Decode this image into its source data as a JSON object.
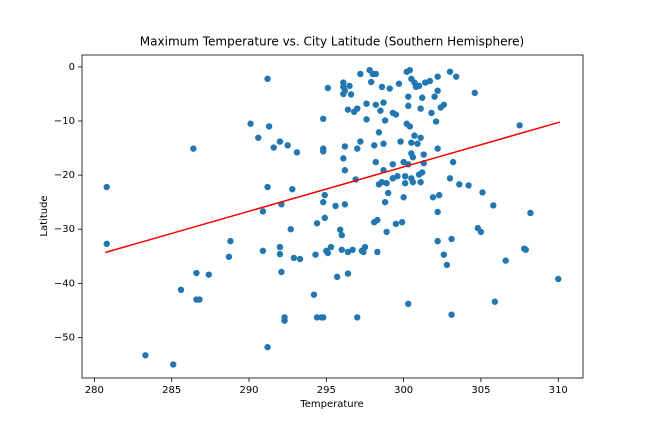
{
  "chart_data": {
    "type": "scatter",
    "title": "Maximum Temperature vs. City Latitude (Southern Hemisphere)",
    "xlabel": "Temperature",
    "ylabel": "Latitude",
    "xlim": [
      279.2,
      311.6
    ],
    "ylim": [
      -57.5,
      2.2
    ],
    "xticks": [
      280,
      285,
      290,
      295,
      300,
      305,
      310
    ],
    "yticks": [
      0,
      {
        "value": -10,
        "label": "−10"
      },
      {
        "value": -20,
        "label": "−20"
      },
      {
        "value": -30,
        "label": "−30"
      },
      {
        "value": -40,
        "label": "−40"
      },
      {
        "value": -50,
        "label": "−50"
      }
    ],
    "color": "#1f77b4",
    "x": [
      280.8,
      280.8,
      283.3,
      285.1,
      285.6,
      286.4,
      286.6,
      286.6,
      286.8,
      287.4,
      288.7,
      288.8,
      290.1,
      290.6,
      290.9,
      290.9,
      291.2,
      291.3,
      291.2,
      291.2,
      291.6,
      292.0,
      292.1,
      292.0,
      292.0,
      292.1,
      292.3,
      292.3,
      292.5,
      292.7,
      292.8,
      292.9,
      293.1,
      293.3,
      294.3,
      294.2,
      294.4,
      294.4,
      294.7,
      294.8,
      294.8,
      294.8,
      294.8,
      294.8,
      294.9,
      294.9,
      295.0,
      295.1,
      295.1,
      295.3,
      295.6,
      295.7,
      295.9,
      296.0,
      296.0,
      296.1,
      296.1,
      296.1,
      296.2,
      296.1,
      296.2,
      296.2,
      296.2,
      296.4,
      296.4,
      296.4,
      296.5,
      296.6,
      296.8,
      296.7,
      296.9,
      297.0,
      297.0,
      297.0,
      297.2,
      297.2,
      297.3,
      297.4,
      297.5,
      297.6,
      297.6,
      297.8,
      297.9,
      298.0,
      298.1,
      298.1,
      298.2,
      298.2,
      298.2,
      298.3,
      298.3,
      298.4,
      298.4,
      298.5,
      298.6,
      298.6,
      298.7,
      298.7,
      298.7,
      298.8,
      298.8,
      298.9,
      298.9,
      299.0,
      299.1,
      299.3,
      299.3,
      299.3,
      299.5,
      299.5,
      299.6,
      299.7,
      299.8,
      299.9,
      300.0,
      300.0,
      300.1,
      300.1,
      300.2,
      300.2,
      300.3,
      300.3,
      300.3,
      300.3,
      300.4,
      300.4,
      300.5,
      300.5,
      300.5,
      300.5,
      300.6,
      300.6,
      300.7,
      300.7,
      300.8,
      300.9,
      301.0,
      301.0,
      301.1,
      301.1,
      301.2,
      301.1,
      301.2,
      301.3,
      301.3,
      301.4,
      301.7,
      301.8,
      301.9,
      302.0,
      302.1,
      302.2,
      302.2,
      302.2,
      302.2,
      302.2,
      302.3,
      302.4,
      302.6,
      302.6,
      302.8,
      303.0,
      303.0,
      303.1,
      303.1,
      303.2,
      303.4,
      303.6,
      304.2,
      304.6,
      304.8,
      305.0,
      305.1,
      305.8,
      305.9,
      306.6,
      307.5,
      307.8,
      307.9,
      308.2,
      310.0
    ],
    "values": [
      -22.2,
      -32.7,
      -53.3,
      -55.0,
      -41.2,
      -15.1,
      -38.1,
      -43.0,
      -43.0,
      -38.4,
      -35.1,
      -32.2,
      -10.5,
      -13.1,
      -26.7,
      -34.0,
      -2.2,
      -11.0,
      -22.2,
      -51.8,
      -14.9,
      -13.8,
      -25.4,
      -33.3,
      -34.6,
      -37.9,
      -46.3,
      -46.9,
      -14.5,
      -30.0,
      -22.6,
      -35.3,
      -15.8,
      -35.5,
      -34.7,
      -42.1,
      -28.9,
      -46.3,
      -46.3,
      -46.3,
      -9.6,
      -15.1,
      -15.6,
      -25.0,
      -23.7,
      -27.9,
      -34.0,
      -3.9,
      -34.4,
      -33.3,
      -25.7,
      -38.8,
      -30.1,
      -31.1,
      -33.8,
      -2.9,
      -3.7,
      -5.0,
      -4.4,
      -16.9,
      -14.7,
      -19.1,
      -25.4,
      -34.2,
      -38.2,
      -7.9,
      -3.5,
      -5.1,
      -8.3,
      -33.8,
      -20.8,
      -15.1,
      -7.7,
      -46.3,
      -1.3,
      -13.8,
      -34.0,
      -34.2,
      -33.3,
      -6.8,
      -9.7,
      -0.6,
      -2.8,
      -1.3,
      -14.5,
      -28.7,
      -17.6,
      -1.3,
      -7.0,
      -28.3,
      -34.2,
      -21.7,
      -12.1,
      -8.1,
      -3.7,
      -21.3,
      -19.1,
      -6.6,
      -14.2,
      -9.9,
      -25.0,
      -30.5,
      -21.5,
      -23.3,
      -4.0,
      -18.0,
      -8.5,
      -20.6,
      -29.0,
      -8.8,
      -20.2,
      -3.1,
      -13.8,
      -28.7,
      -24.1,
      -17.6,
      -20.2,
      -21.5,
      -0.9,
      -10.5,
      -43.8,
      -7.2,
      -5.5,
      -18.0,
      -11.0,
      -0.6,
      -2.2,
      -14.0,
      -20.6,
      -16.0,
      -16.7,
      -21.3,
      -12.7,
      -2.9,
      -3.7,
      -14.2,
      -3.5,
      -19.9,
      -7.7,
      -13.1,
      -5.7,
      -21.3,
      -19.5,
      -17.8,
      -16.2,
      -2.9,
      -2.6,
      -8.5,
      -24.1,
      -5.5,
      -10.1,
      -1.8,
      -4.4,
      -26.8,
      -32.2,
      -15.1,
      -23.7,
      -7.5,
      -7.0,
      -34.7,
      -36.6,
      -0.9,
      -20.6,
      -31.8,
      -45.8,
      -17.6,
      -1.8,
      -21.7,
      -21.9,
      -4.8,
      -29.8,
      -30.5,
      -23.2,
      -25.6,
      -43.4,
      -35.8,
      -10.8,
      -33.6,
      -33.8,
      -27.0,
      -39.2
    ],
    "fit": {
      "color": "#ff0000",
      "x": [
        280.7,
        310.1
      ],
      "values": [
        -34.3,
        -10.2
      ]
    }
  }
}
